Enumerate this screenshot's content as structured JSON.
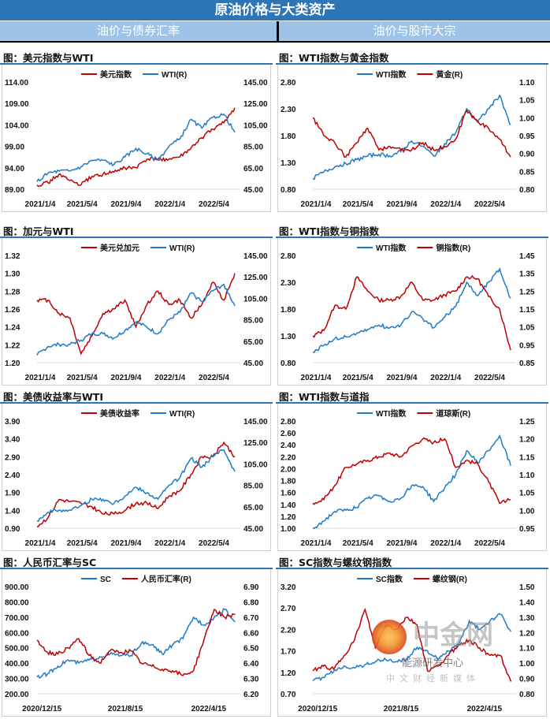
{
  "header": {
    "title": "原油价格与大类资产",
    "left_section": "油价与债券汇率",
    "right_section": "油价与股市大宗"
  },
  "colors": {
    "header_bg": "#2E75B6",
    "subheader_bg": "#9DC3E6",
    "red_series": "#C00000",
    "blue_series": "#1F7BC8"
  },
  "watermark": {
    "logo_text": "中金网",
    "line1": "能源研发中心",
    "line2": "中文财经新媒体"
  },
  "chart_data": [
    {
      "id": "c1",
      "type": "line",
      "title": "图：美元指数与WTI",
      "x": [
        "2021-01",
        "2021-02",
        "2021-03",
        "2021-04",
        "2021-05",
        "2021-06",
        "2021-07",
        "2021-08",
        "2021-09",
        "2021-10",
        "2021-11",
        "2021-12",
        "2022-01",
        "2022-02",
        "2022-03",
        "2022-04",
        "2022-05",
        "2022-06",
        "2022-07"
      ],
      "x_ticks": [
        "2021/1/4",
        "2021/5/4",
        "2021/9/4",
        "2022/1/4",
        "2022/5/4"
      ],
      "left_axis": {
        "min": 89,
        "max": 114,
        "ticks": [
          "89.00",
          "94.00",
          "99.00",
          "104.00",
          "109.00",
          "114.00"
        ]
      },
      "right_axis": {
        "min": 45,
        "max": 145,
        "ticks": [
          "45.00",
          "65.00",
          "85.00",
          "105.00",
          "125.00",
          "145.00"
        ]
      },
      "series": [
        {
          "name": "美元指数",
          "axis": "left",
          "color": "#C00000",
          "values": [
            90,
            90.5,
            92.5,
            91,
            90,
            92,
            92.5,
            93,
            94,
            94,
            96,
            96,
            96,
            96.5,
            98.5,
            101,
            103,
            104.5,
            108
          ]
        },
        {
          "name": "WTI(R)",
          "axis": "right",
          "color": "#1F7BC8",
          "values": [
            52,
            60,
            62,
            62,
            66,
            72,
            72,
            68,
            75,
            83,
            78,
            72,
            85,
            92,
            110,
            102,
            112,
            115,
            98
          ]
        }
      ]
    },
    {
      "id": "c2",
      "type": "line",
      "title": "图：WTI指数与黄金指数",
      "x": [
        "2021-01",
        "2021-02",
        "2021-03",
        "2021-04",
        "2021-05",
        "2021-06",
        "2021-07",
        "2021-08",
        "2021-09",
        "2021-10",
        "2021-11",
        "2021-12",
        "2022-01",
        "2022-02",
        "2022-03",
        "2022-04",
        "2022-05",
        "2022-06",
        "2022-07"
      ],
      "x_ticks": [
        "2021/1/4",
        "2021/5/4",
        "2021/9/4",
        "2022/1/4",
        "2022/5/4"
      ],
      "left_axis": {
        "min": 0.8,
        "max": 2.8,
        "ticks": [
          "0.80",
          "1.30",
          "1.80",
          "2.30",
          "2.80"
        ]
      },
      "right_axis": {
        "min": 0.8,
        "max": 1.1,
        "ticks": [
          "0.80",
          "0.85",
          "0.90",
          "0.95",
          "1.00",
          "1.05",
          "1.10"
        ]
      },
      "series": [
        {
          "name": "WTI指数",
          "axis": "left",
          "color": "#1F7BC8",
          "values": [
            1.0,
            1.12,
            1.22,
            1.28,
            1.35,
            1.42,
            1.45,
            1.42,
            1.5,
            1.7,
            1.6,
            1.42,
            1.65,
            1.85,
            2.3,
            2.05,
            2.3,
            2.55,
            2.0
          ]
        },
        {
          "name": "黄金(R)",
          "axis": "right",
          "color": "#C00000",
          "values": [
            1.0,
            0.95,
            0.93,
            0.89,
            0.93,
            0.97,
            0.91,
            0.92,
            0.91,
            0.91,
            0.93,
            0.91,
            0.92,
            0.94,
            1.02,
            0.99,
            0.97,
            0.94,
            0.89
          ]
        }
      ]
    },
    {
      "id": "c3",
      "type": "line",
      "title": "图：加元与WTI",
      "x": [
        "2021-01",
        "2021-02",
        "2021-03",
        "2021-04",
        "2021-05",
        "2021-06",
        "2021-07",
        "2021-08",
        "2021-09",
        "2021-10",
        "2021-11",
        "2021-12",
        "2022-01",
        "2022-02",
        "2022-03",
        "2022-04",
        "2022-05",
        "2022-06",
        "2022-07"
      ],
      "x_ticks": [
        "2021/1/4",
        "2021/5/4",
        "2021/9/4",
        "2022/1/4",
        "2022/5/4"
      ],
      "left_axis": {
        "min": 1.2,
        "max": 1.32,
        "ticks": [
          "1.20",
          "1.22",
          "1.24",
          "1.26",
          "1.28",
          "1.30",
          "1.32"
        ]
      },
      "right_axis": {
        "min": 45,
        "max": 145,
        "ticks": [
          "45.00",
          "65.00",
          "85.00",
          "105.00",
          "125.00",
          "145.00"
        ]
      },
      "series": [
        {
          "name": "美元兑加元",
          "axis": "left",
          "color": "#C00000",
          "values": [
            1.27,
            1.27,
            1.255,
            1.25,
            1.21,
            1.23,
            1.255,
            1.26,
            1.27,
            1.24,
            1.265,
            1.28,
            1.265,
            1.27,
            1.25,
            1.265,
            1.29,
            1.27,
            1.3
          ]
        },
        {
          "name": "WTI(R)",
          "axis": "right",
          "color": "#1F7BC8",
          "values": [
            52,
            60,
            62,
            62,
            66,
            72,
            72,
            68,
            75,
            83,
            78,
            72,
            85,
            92,
            110,
            102,
            112,
            118,
            98
          ]
        }
      ]
    },
    {
      "id": "c4",
      "type": "line",
      "title": "图：WTI指数与铜指数",
      "x": [
        "2021-01",
        "2021-02",
        "2021-03",
        "2021-04",
        "2021-05",
        "2021-06",
        "2021-07",
        "2021-08",
        "2021-09",
        "2021-10",
        "2021-11",
        "2021-12",
        "2022-01",
        "2022-02",
        "2022-03",
        "2022-04",
        "2022-05",
        "2022-06",
        "2022-07"
      ],
      "x_ticks": [
        "2021/1/4",
        "2021/5/4",
        "2021/9/4",
        "2022/1/4",
        "2022/5/4"
      ],
      "left_axis": {
        "min": 0.8,
        "max": 2.8,
        "ticks": [
          "0.80",
          "1.30",
          "1.80",
          "2.30",
          "2.80"
        ]
      },
      "right_axis": {
        "min": 0.85,
        "max": 1.45,
        "ticks": [
          "0.85",
          "0.95",
          "1.05",
          "1.15",
          "1.25",
          "1.35",
          "1.45"
        ]
      },
      "series": [
        {
          "name": "WTI指数",
          "axis": "left",
          "color": "#1F7BC8",
          "values": [
            1.0,
            1.12,
            1.25,
            1.28,
            1.35,
            1.42,
            1.5,
            1.45,
            1.5,
            1.75,
            1.62,
            1.45,
            1.65,
            1.85,
            2.3,
            2.05,
            2.3,
            2.55,
            2.0
          ]
        },
        {
          "name": "铜指数(R)",
          "axis": "right",
          "color": "#C00000",
          "values": [
            1.0,
            1.03,
            1.17,
            1.15,
            1.33,
            1.25,
            1.2,
            1.2,
            1.22,
            1.3,
            1.2,
            1.2,
            1.23,
            1.25,
            1.33,
            1.32,
            1.22,
            1.15,
            0.92
          ]
        }
      ]
    },
    {
      "id": "c5",
      "type": "line",
      "title": "图：美债收益率与WTI",
      "x": [
        "2021-01",
        "2021-02",
        "2021-03",
        "2021-04",
        "2021-05",
        "2021-06",
        "2021-07",
        "2021-08",
        "2021-09",
        "2021-10",
        "2021-11",
        "2021-12",
        "2022-01",
        "2022-02",
        "2022-03",
        "2022-04",
        "2022-05",
        "2022-06",
        "2022-07"
      ],
      "x_ticks": [
        "2021/1/4",
        "2021/5/4",
        "2021/9/4",
        "2022/1/4",
        "2022/5/4"
      ],
      "left_axis": {
        "min": 0.9,
        "max": 3.9,
        "ticks": [
          "0.90",
          "1.40",
          "1.90",
          "2.40",
          "2.90",
          "3.40",
          "3.90"
        ]
      },
      "right_axis": {
        "min": 45,
        "max": 145,
        "ticks": [
          "45.00",
          "65.00",
          "85.00",
          "105.00",
          "125.00",
          "145.00"
        ]
      },
      "series": [
        {
          "name": "美债收益率",
          "axis": "left",
          "color": "#C00000",
          "values": [
            0.95,
            1.2,
            1.7,
            1.65,
            1.6,
            1.5,
            1.3,
            1.3,
            1.4,
            1.6,
            1.6,
            1.45,
            1.8,
            1.95,
            2.4,
            2.9,
            2.9,
            3.3,
            2.9
          ]
        },
        {
          "name": "WTI(R)",
          "axis": "right",
          "color": "#1F7BC8",
          "values": [
            52,
            60,
            62,
            62,
            66,
            72,
            72,
            68,
            75,
            83,
            78,
            72,
            85,
            92,
            110,
            102,
            112,
            118,
            98
          ]
        }
      ]
    },
    {
      "id": "c6",
      "type": "line",
      "title": "图：WTI指数与道指",
      "x": [
        "2021-01",
        "2021-02",
        "2021-03",
        "2021-04",
        "2021-05",
        "2021-06",
        "2021-07",
        "2021-08",
        "2021-09",
        "2021-10",
        "2021-11",
        "2021-12",
        "2022-01",
        "2022-02",
        "2022-03",
        "2022-04",
        "2022-05",
        "2022-06",
        "2022-07"
      ],
      "x_ticks": [
        "2021/1/4",
        "2021/5/4",
        "2021/9/4",
        "2022/1/4",
        "2022/5/4"
      ],
      "left_axis": {
        "min": 1.0,
        "max": 2.8,
        "ticks": [
          "1.00",
          "1.20",
          "1.40",
          "1.60",
          "1.80",
          "2.00",
          "2.20",
          "2.40",
          "2.60",
          "2.80"
        ]
      },
      "right_axis": {
        "min": 0.95,
        "max": 1.25,
        "ticks": [
          "0.95",
          "1.00",
          "1.05",
          "1.10",
          "1.15",
          "1.20",
          "1.25"
        ]
      },
      "series": [
        {
          "name": "WTI指数",
          "axis": "left",
          "color": "#1F7BC8",
          "values": [
            1.0,
            1.12,
            1.28,
            1.3,
            1.35,
            1.5,
            1.55,
            1.45,
            1.5,
            1.72,
            1.7,
            1.45,
            1.68,
            1.9,
            2.3,
            2.1,
            2.3,
            2.55,
            2.05
          ]
        },
        {
          "name": "道琼斯(R)",
          "axis": "right",
          "color": "#C00000",
          "values": [
            1.02,
            1.03,
            1.07,
            1.12,
            1.13,
            1.14,
            1.15,
            1.16,
            1.15,
            1.18,
            1.2,
            1.19,
            1.2,
            1.12,
            1.14,
            1.13,
            1.08,
            1.02,
            1.03
          ]
        }
      ]
    },
    {
      "id": "c7",
      "type": "line",
      "title": "图：人民币汇率与SC",
      "x": [
        "2020-12",
        "2021-01",
        "2021-02",
        "2021-03",
        "2021-04",
        "2021-05",
        "2021-06",
        "2021-07",
        "2021-08",
        "2021-09",
        "2021-10",
        "2021-11",
        "2021-12",
        "2022-01",
        "2022-02",
        "2022-03",
        "2022-04",
        "2022-05",
        "2022-06",
        "2022-07"
      ],
      "x_ticks": [
        "2020/12/15",
        "2021/8/15",
        "2022/4/15"
      ],
      "left_axis": {
        "min": 200,
        "max": 900,
        "ticks": [
          "200.00",
          "300.00",
          "400.00",
          "500.00",
          "600.00",
          "700.00",
          "800.00",
          "900.00"
        ]
      },
      "right_axis": {
        "min": 6.2,
        "max": 6.9,
        "ticks": [
          "6.20",
          "6.30",
          "6.40",
          "6.50",
          "6.60",
          "6.70",
          "6.80",
          "6.90"
        ]
      },
      "series": [
        {
          "name": "SC",
          "axis": "left",
          "color": "#1F7BC8",
          "values": [
            310,
            330,
            380,
            420,
            400,
            420,
            440,
            460,
            450,
            450,
            530,
            520,
            460,
            520,
            560,
            700,
            650,
            700,
            750,
            670
          ]
        },
        {
          "name": "人民币汇率(R)",
          "axis": "right",
          "color": "#C00000",
          "values": [
            6.55,
            6.47,
            6.46,
            6.5,
            6.56,
            6.45,
            6.4,
            6.48,
            6.47,
            6.48,
            6.4,
            6.38,
            6.36,
            6.35,
            6.32,
            6.35,
            6.55,
            6.75,
            6.7,
            6.72
          ]
        }
      ]
    },
    {
      "id": "c8",
      "type": "line",
      "title": "图：SC指数与螺纹钢指数",
      "x": [
        "2020-12",
        "2021-01",
        "2021-02",
        "2021-03",
        "2021-04",
        "2021-05",
        "2021-06",
        "2021-07",
        "2021-08",
        "2021-09",
        "2021-10",
        "2021-11",
        "2021-12",
        "2022-01",
        "2022-02",
        "2022-03",
        "2022-04",
        "2022-05",
        "2022-06",
        "2022-07"
      ],
      "x_ticks": [
        "2020/12/15",
        "2021/8/15",
        "2022/4/15"
      ],
      "left_axis": {
        "min": 0.7,
        "max": 3.2,
        "ticks": [
          "0.70",
          "1.20",
          "1.70",
          "2.20",
          "2.70",
          "3.20"
        ]
      },
      "right_axis": {
        "min": 0.8,
        "max": 1.5,
        "ticks": [
          "0.80",
          "0.90",
          "1.00",
          "1.10",
          "1.20",
          "1.30",
          "1.40",
          "1.50"
        ]
      },
      "series": [
        {
          "name": "SC指数",
          "axis": "left",
          "color": "#1F7BC8",
          "values": [
            1.0,
            1.08,
            1.22,
            1.35,
            1.3,
            1.38,
            1.45,
            1.5,
            1.45,
            1.5,
            1.78,
            1.7,
            1.5,
            1.7,
            1.85,
            2.4,
            2.2,
            2.4,
            2.55,
            2.15
          ]
        },
        {
          "name": "螺纹钢(R)",
          "axis": "right",
          "color": "#C00000",
          "values": [
            0.95,
            0.98,
            0.96,
            1.05,
            1.15,
            1.35,
            1.1,
            1.25,
            1.22,
            1.3,
            1.25,
            0.95,
            0.98,
            1.05,
            1.12,
            1.15,
            1.1,
            1.05,
            1.05,
            0.88
          ]
        }
      ]
    }
  ]
}
